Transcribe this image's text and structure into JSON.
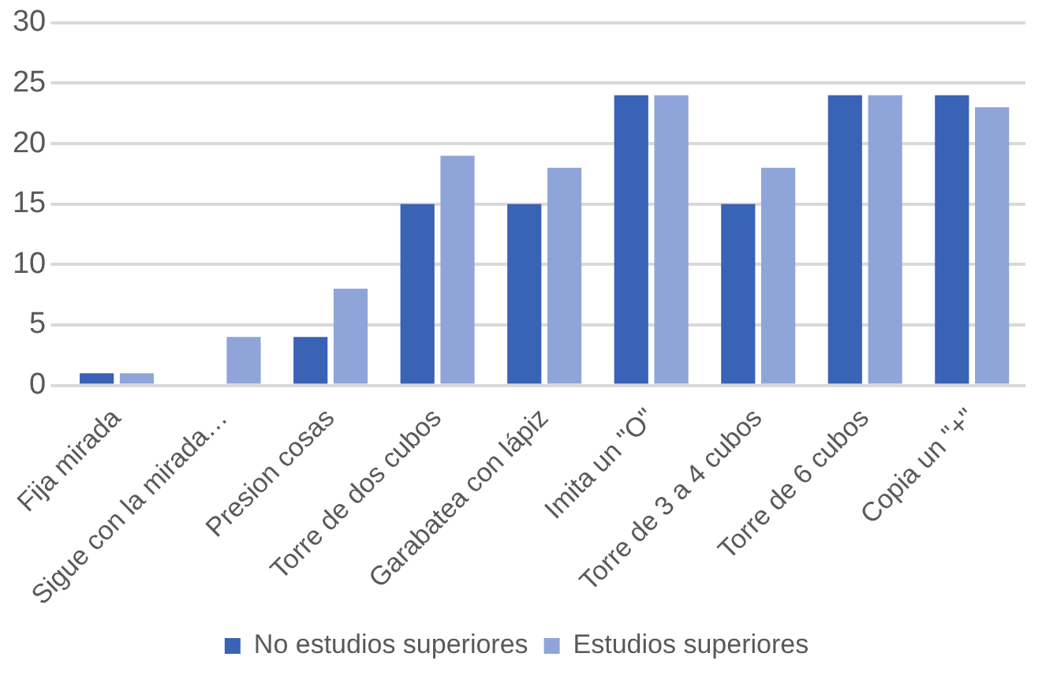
{
  "chart_data": {
    "type": "bar",
    "categories": [
      "Fija mirada",
      "Sigue con la mirada…",
      "Presion cosas",
      "Torre de dos cubos",
      "Garabatea con lápiz",
      "Imita un \"O\"",
      "Torre de 3 a 4 cubos",
      "Torre de 6 cubos",
      "Copia un \"+\""
    ],
    "series": [
      {
        "name": "No estudios superiores",
        "color": "#3a62b5",
        "values": [
          1,
          0,
          4,
          15,
          15,
          24,
          15,
          24,
          24
        ]
      },
      {
        "name": "Estudios superiores",
        "color": "#8fa5d9",
        "values": [
          1,
          4,
          8,
          19,
          18,
          24,
          18,
          24,
          23
        ]
      }
    ],
    "ylim": [
      0,
      30
    ],
    "yticks": [
      0,
      5,
      10,
      15,
      20,
      25,
      30
    ],
    "grid": "y",
    "legend": "bottom"
  }
}
